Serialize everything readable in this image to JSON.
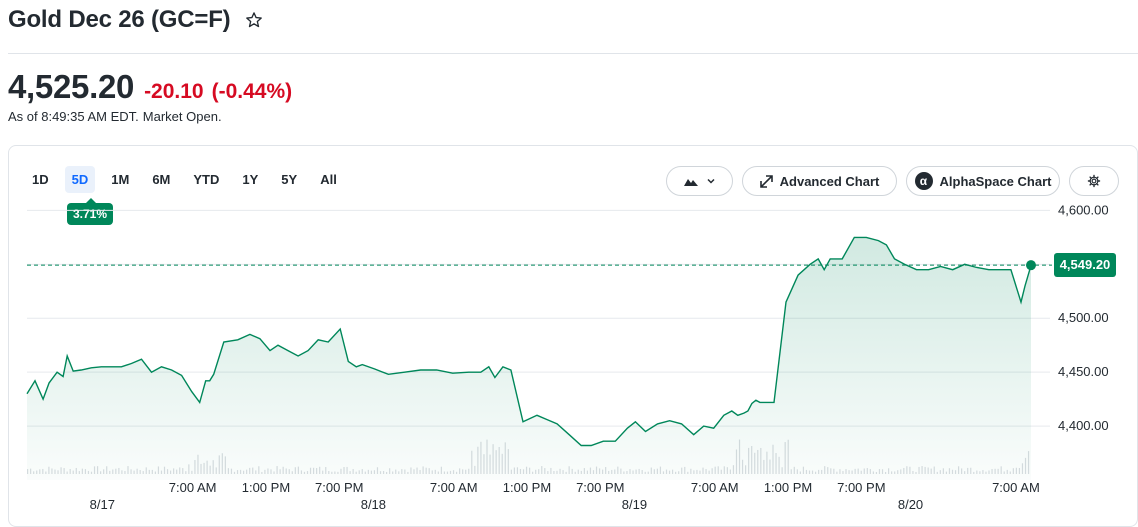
{
  "header": {
    "title": "Gold Dec 26 (GC=F)",
    "price": "4,525.20",
    "change": "-20.10",
    "change_pct": "(-0.44%)",
    "as_of": "As of 8:49:35 AM EDT.",
    "market_status": "Market Open."
  },
  "toolbar": {
    "ranges": [
      "1D",
      "5D",
      "1M",
      "6M",
      "YTD",
      "1Y",
      "5Y",
      "All"
    ],
    "active_range": "5D",
    "range_change_badge": "3.71%",
    "chart_type_icon": "mountain-icon",
    "advanced_chart_label": "Advanced Chart",
    "alphaspace_chart_label": "AlphaSpace Chart",
    "alphaspace_icon_glyph": "α",
    "settings_icon": "gear-icon"
  },
  "colors": {
    "line": "#00875a",
    "fill": "#00875a",
    "negative": "#d60a22",
    "accent": "#0f69ff"
  },
  "chart_data": {
    "type": "area",
    "ylim": [
      4350,
      4605
    ],
    "y_ticks": [
      4600,
      4550,
      4500,
      4450,
      4400
    ],
    "y_tick_labels": [
      "4,600.00",
      "4,550.00",
      "4,500.00",
      "4,450.00",
      "4,400.00"
    ],
    "hidden_tick_note": "",
    "reference_value": 4549.2,
    "reference_label": "4,549.20",
    "x_time_labels": [
      {
        "text": "7:00 AM",
        "t": 0.165
      },
      {
        "text": "1:00 PM",
        "t": 0.238
      },
      {
        "text": "7:00 PM",
        "t": 0.311
      },
      {
        "text": "7:00 AM",
        "t": 0.425
      },
      {
        "text": "1:00 PM",
        "t": 0.498
      },
      {
        "text": "7:00 PM",
        "t": 0.571
      },
      {
        "text": "7:00 AM",
        "t": 0.685
      },
      {
        "text": "1:00 PM",
        "t": 0.758
      },
      {
        "text": "7:00 PM",
        "t": 0.831
      },
      {
        "text": "7:00 AM",
        "t": 0.985
      }
    ],
    "x_day_labels": [
      {
        "text": "8/17",
        "t": 0.075
      },
      {
        "text": "8/18",
        "t": 0.345
      },
      {
        "text": "8/19",
        "t": 0.605
      },
      {
        "text": "8/20",
        "t": 0.88
      }
    ],
    "x_t": [
      0.0,
      0.008,
      0.016,
      0.022,
      0.03,
      0.036,
      0.04,
      0.046,
      0.054,
      0.064,
      0.074,
      0.084,
      0.094,
      0.104,
      0.114,
      0.124,
      0.134,
      0.144,
      0.154,
      0.164,
      0.172,
      0.178,
      0.182,
      0.186,
      0.196,
      0.21,
      0.222,
      0.232,
      0.242,
      0.25,
      0.26,
      0.27,
      0.28,
      0.29,
      0.3,
      0.312,
      0.32,
      0.328,
      0.334,
      0.346,
      0.36,
      0.376,
      0.392,
      0.408,
      0.424,
      0.44,
      0.452,
      0.46,
      0.466,
      0.474,
      0.482,
      0.494,
      0.508,
      0.518,
      0.528,
      0.54,
      0.552,
      0.562,
      0.574,
      0.586,
      0.598,
      0.606,
      0.616,
      0.628,
      0.64,
      0.652,
      0.664,
      0.674,
      0.684,
      0.694,
      0.702,
      0.708,
      0.714,
      0.718,
      0.722,
      0.726,
      0.73,
      0.736,
      0.744,
      0.756,
      0.768,
      0.78,
      0.788,
      0.794,
      0.8,
      0.812,
      0.824,
      0.836,
      0.848,
      0.856,
      0.864,
      0.874,
      0.886,
      0.898,
      0.91,
      0.922,
      0.934,
      0.946,
      0.958,
      0.97,
      0.98,
      0.99,
      0.994,
      1.0
    ],
    "values": [
      4430,
      4442,
      4425,
      4440,
      4450,
      4446,
      4465,
      4451,
      4452,
      4454,
      4455,
      4455,
      4455,
      4458,
      4462,
      4450,
      4455,
      4452,
      4447,
      4432,
      4422,
      4442,
      4442,
      4448,
      4478,
      4480,
      4485,
      4481,
      4470,
      4475,
      4470,
      4465,
      4470,
      4480,
      4478,
      4490,
      4460,
      4455,
      4457,
      4453,
      4448,
      4450,
      4452,
      4452,
      4449,
      4450,
      4450,
      4455,
      4445,
      4455,
      4452,
      4404,
      4410,
      4406,
      4402,
      4392,
      4382,
      4382,
      4386,
      4386,
      4398,
      4404,
      4395,
      4402,
      4405,
      4402,
      4392,
      4400,
      4398,
      4410,
      4414,
      4410,
      4412,
      4414,
      4421,
      4424,
      4422,
      4422,
      4422,
      4515,
      4540,
      4550,
      4555,
      4545,
      4555,
      4555,
      4575,
      4575,
      4572,
      4568,
      4555,
      4550,
      4545,
      4545,
      4548,
      4545,
      4550,
      4547,
      4545,
      4545,
      4545,
      4515,
      4530,
      4549
    ]
  }
}
